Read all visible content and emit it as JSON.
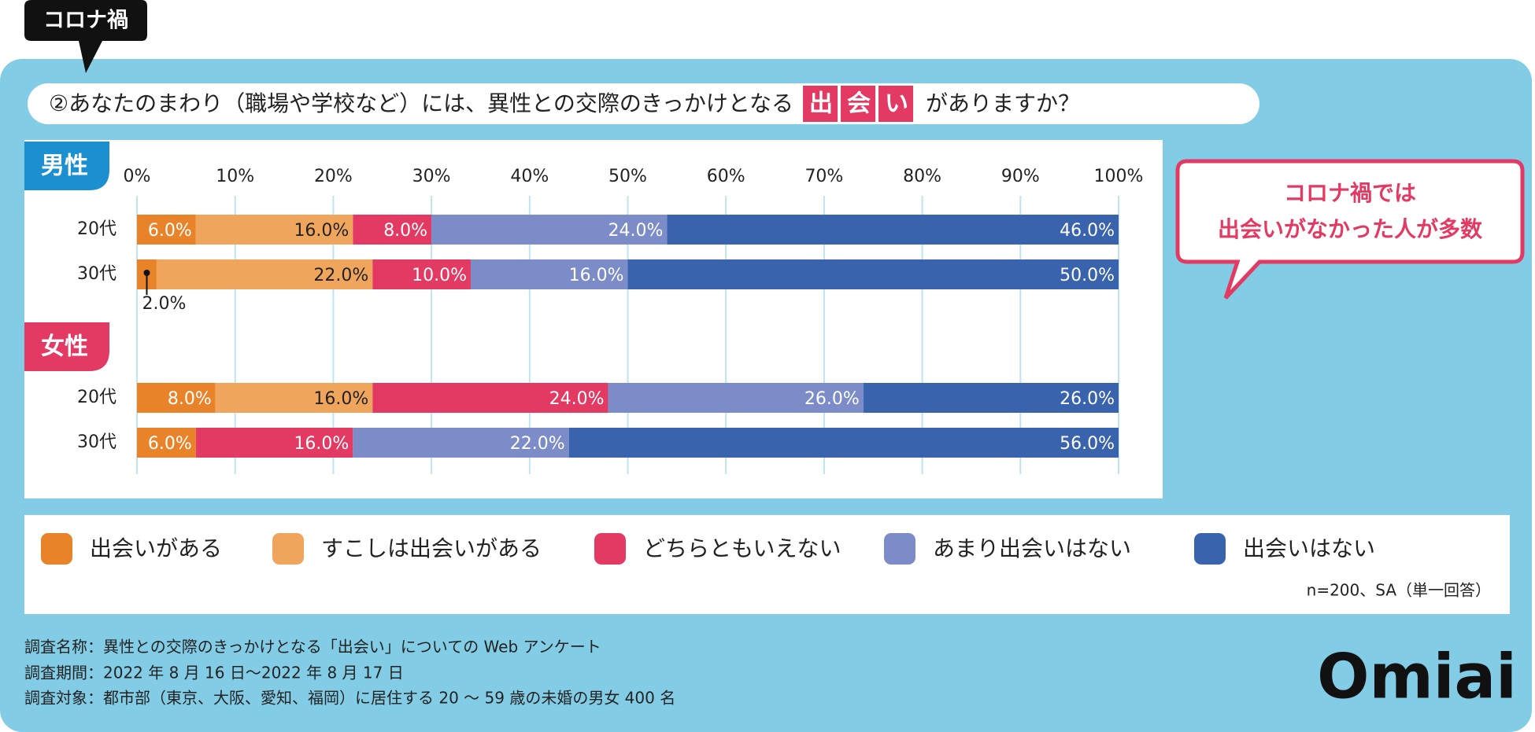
{
  "badge": "コロナ禍",
  "chart_data": {
    "type": "bar",
    "orientation": "horizontal",
    "stacked": true,
    "title": "②あなたのまわり（職場や学校など）には、異性との交際のきっかけとなる",
    "title_highlight": "出会い",
    "title_end": "がありますか？",
    "groups": [
      {
        "label": "男性",
        "color": "#1b8fcf"
      },
      {
        "label": "女性",
        "color": "#e33a63"
      }
    ],
    "categories": [
      "20代",
      "30代",
      "20代",
      "30代"
    ],
    "series": [
      {
        "name": "出会いがある",
        "color": "#e8832a",
        "label_color": "#ffffff",
        "values": [
          6,
          2,
          8,
          6
        ],
        "value_labels": [
          "6.0%",
          "2.0%",
          "8.0%",
          "6.0%"
        ]
      },
      {
        "name": "すこしは出会いがある",
        "color": "#f0a55d",
        "label_color": "#222222",
        "values": [
          16,
          22,
          16,
          null
        ],
        "value_labels": [
          "16.0%",
          "22.0%",
          "16.0%",
          null
        ]
      },
      {
        "name": "どちらともいえない",
        "color": "#e33a63",
        "label_color": "#ffffff",
        "values": [
          8,
          10,
          24,
          16
        ],
        "value_labels": [
          "8.0%",
          "10.0%",
          "24.0%",
          "16.0%"
        ]
      },
      {
        "name": "あまり出会いはない",
        "color": "#7b8cc8",
        "label_color": "#ffffff",
        "values": [
          24,
          16,
          26,
          22
        ],
        "value_labels": [
          "24.0%",
          "16.0%",
          "26.0%",
          "22.0%"
        ]
      },
      {
        "name": "出会いはない",
        "color": "#3a63ae",
        "label_color": "#ffffff",
        "values": [
          46,
          50,
          26,
          56
        ],
        "value_labels": [
          "46.0%",
          "50.0%",
          "26.0%",
          "56.0%"
        ]
      }
    ],
    "xlim": [
      0,
      100
    ],
    "xticks": [
      {
        "value": 0,
        "label": "0%"
      },
      {
        "value": 10,
        "label": "10%"
      },
      {
        "value": 20,
        "label": "20%"
      },
      {
        "value": 30,
        "label": "30%"
      },
      {
        "value": 40,
        "label": "40%"
      },
      {
        "value": 50,
        "label": "50%"
      },
      {
        "value": 60,
        "label": "60%"
      },
      {
        "value": 70,
        "label": "70%"
      },
      {
        "value": 80,
        "label": "80%"
      },
      {
        "value": 90,
        "label": "90%"
      },
      {
        "value": 100,
        "label": "100%"
      }
    ],
    "grid": true,
    "note": "n=200、SA（単一回答）"
  },
  "callout": [
    "コロナ禍では",
    "出会いがなかった人が多数"
  ],
  "footer": [
    "調査名称：異性との交際のきっかけとなる「出会い」についての Web アンケート",
    "調査期間：2022 年 8 月 16 日～2022 年 8 月 17 日",
    "調査対象：都市部（東京、大阪、愛知、福岡）に居住する 20 ～ 59 歳の未婚の男女 400 名"
  ],
  "logo": "Omiai"
}
